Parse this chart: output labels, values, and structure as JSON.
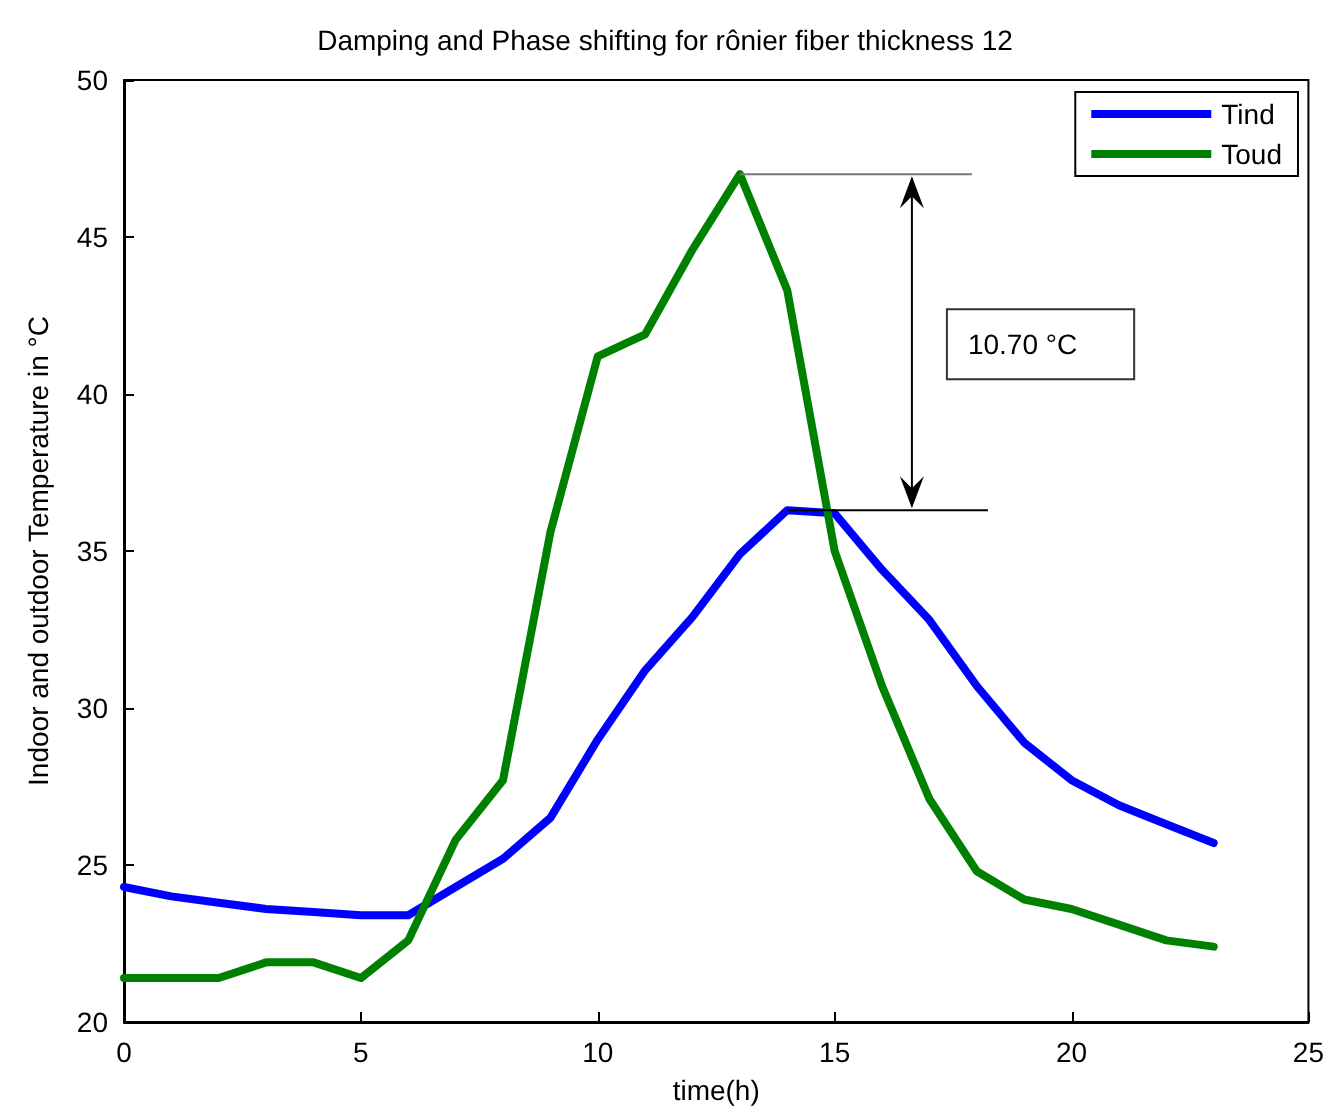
{
  "chart_data": {
    "type": "line",
    "title": "Damping and Phase shifting for rônier fiber thickness 12",
    "xlabel": "time(h)",
    "ylabel": "Indoor and outdoor Temperature in °C",
    "x": [
      0,
      1,
      2,
      3,
      4,
      5,
      6,
      7,
      8,
      9,
      10,
      11,
      12,
      13,
      14,
      15,
      16,
      17,
      18,
      19,
      20,
      21,
      22,
      23
    ],
    "series": [
      {
        "name": "Tind",
        "color": "#0000ff",
        "values": [
          24.3,
          24.0,
          23.8,
          23.6,
          23.5,
          23.4,
          23.4,
          24.3,
          25.2,
          26.5,
          29.0,
          31.2,
          32.9,
          34.9,
          36.3,
          36.2,
          34.4,
          32.8,
          30.7,
          28.9,
          27.7,
          26.9,
          26.3,
          25.7
        ]
      },
      {
        "name": "Toud",
        "color": "#008000",
        "values": [
          21.4,
          21.4,
          21.4,
          21.9,
          21.9,
          21.4,
          22.6,
          25.8,
          27.7,
          35.6,
          41.2,
          41.9,
          44.6,
          47.0,
          43.3,
          35.0,
          30.7,
          27.1,
          24.8,
          23.9,
          23.6,
          23.1,
          22.6,
          22.4
        ]
      }
    ],
    "xlim": [
      0,
      25
    ],
    "xticks": [
      0,
      5,
      10,
      15,
      20,
      25
    ],
    "ylim": [
      20,
      50
    ],
    "yticks": [
      20,
      25,
      30,
      35,
      40,
      45,
      50
    ],
    "annotations": [
      "10.70 °C"
    ],
    "legend": "top right",
    "grid": false,
    "marker": "none",
    "line_style": "solid"
  }
}
